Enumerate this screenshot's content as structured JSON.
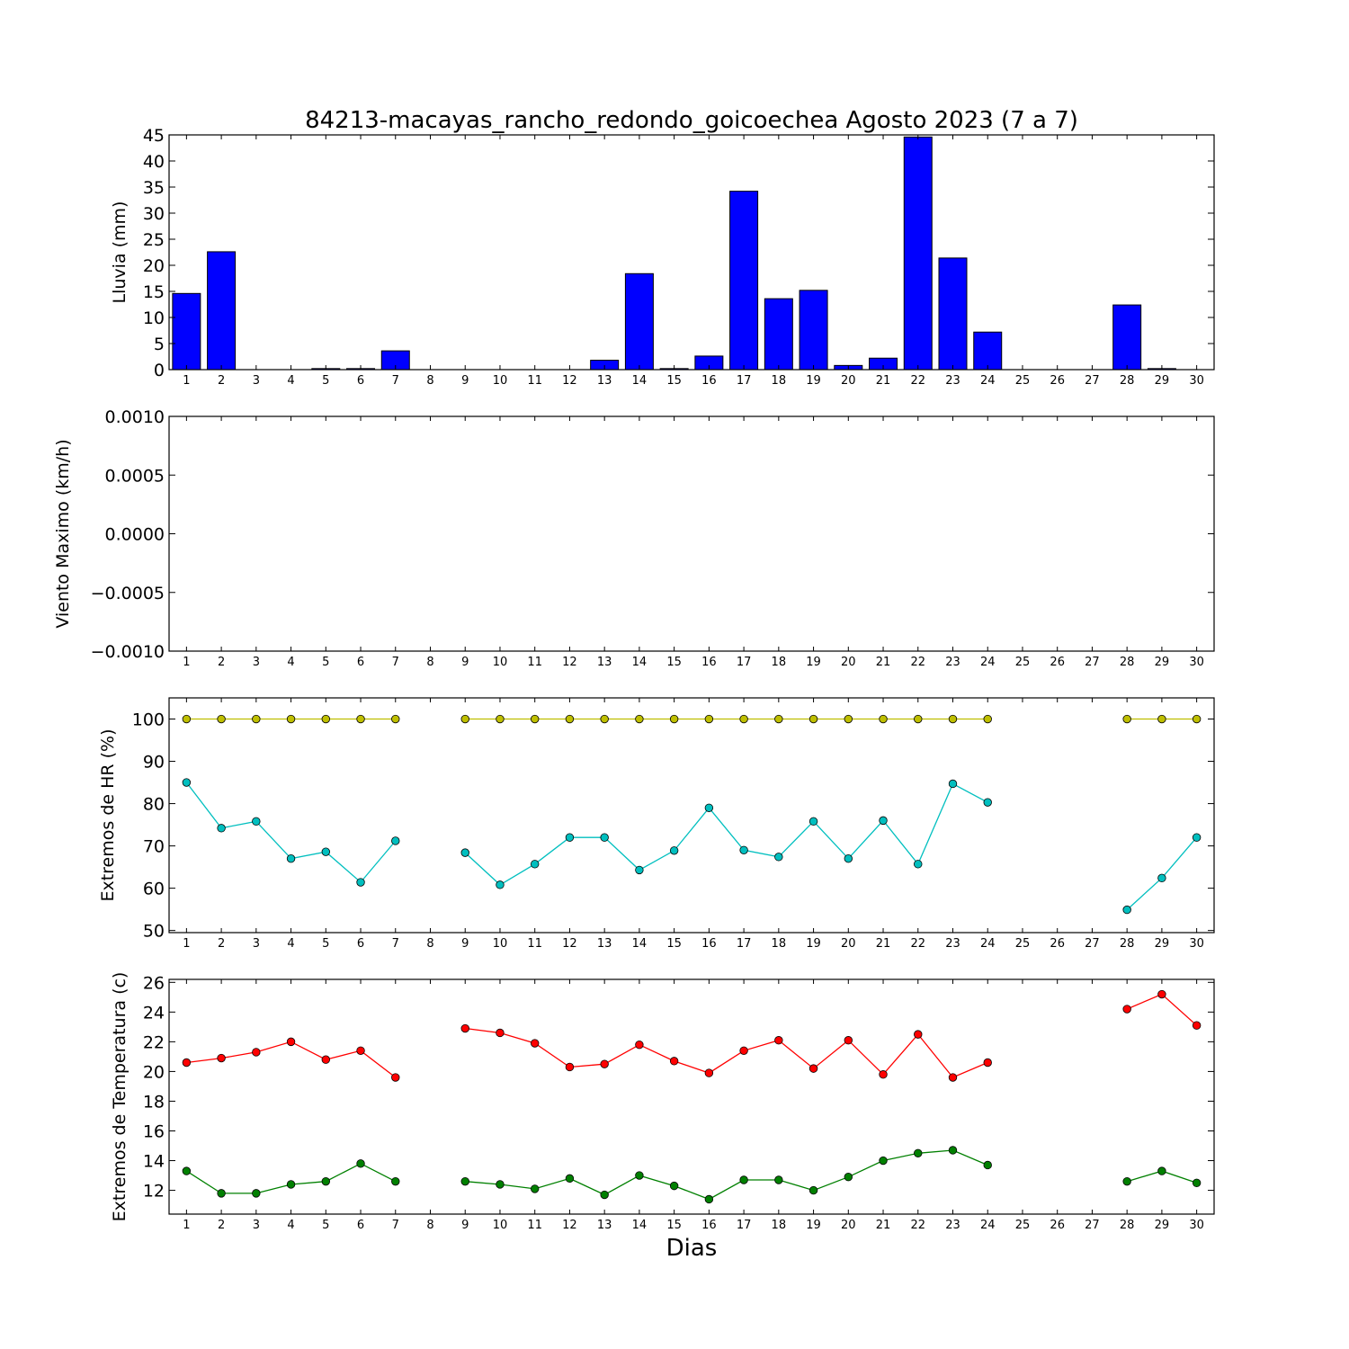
{
  "figure": {
    "title": "84213-macayas_rancho_redondo_goicoechea Agosto 2023  (7 a 7)",
    "xlabel": "Dias"
  },
  "chart_data": [
    {
      "type": "bar",
      "ylabel": "Lluvia (mm)",
      "ylim": [
        0,
        45
      ],
      "yticks": [
        "0",
        "5",
        "10",
        "15",
        "20",
        "25",
        "30",
        "35",
        "40",
        "45"
      ],
      "xticks": [
        "1",
        "2",
        "3",
        "4",
        "5",
        "6",
        "7",
        "8",
        "9",
        "10",
        "11",
        "12",
        "13",
        "14",
        "15",
        "16",
        "17",
        "18",
        "19",
        "20",
        "21",
        "22",
        "23",
        "24",
        "25",
        "26",
        "27",
        "28",
        "29",
        "30"
      ],
      "grid": false,
      "series": [
        {
          "color": "#0000ff",
          "x": [
            1,
            2,
            3,
            4,
            5,
            6,
            7,
            8,
            9,
            10,
            11,
            12,
            13,
            14,
            15,
            16,
            17,
            18,
            19,
            20,
            21,
            22,
            23,
            24,
            25,
            26,
            27,
            28,
            29,
            30
          ],
          "values": [
            14.6,
            22.6,
            0,
            0,
            0.2,
            0.2,
            3.6,
            0,
            0,
            0,
            0,
            0,
            1.8,
            18.4,
            0.2,
            2.6,
            34.2,
            13.6,
            15.2,
            0.8,
            2.2,
            44.6,
            21.4,
            7.2,
            0,
            0,
            0,
            12.4,
            0.2,
            0
          ]
        }
      ]
    },
    {
      "type": "line",
      "ylabel": "Viento Maximo (km/h)",
      "ylim": [
        -0.001,
        0.001
      ],
      "yticks": [
        "−0.0010",
        "−0.0005",
        "0.0000",
        "0.0005",
        "0.0010"
      ],
      "xticks": [
        "1",
        "2",
        "3",
        "4",
        "5",
        "6",
        "7",
        "8",
        "9",
        "10",
        "11",
        "12",
        "13",
        "14",
        "15",
        "16",
        "17",
        "18",
        "19",
        "20",
        "21",
        "22",
        "23",
        "24",
        "25",
        "26",
        "27",
        "28",
        "29",
        "30"
      ],
      "grid": false,
      "series": []
    },
    {
      "type": "line",
      "ylabel": "Extremos de HR (%)",
      "ylim": [
        49.5,
        105
      ],
      "yticks": [
        "50",
        "60",
        "70",
        "80",
        "90",
        "100"
      ],
      "xticks": [
        "1",
        "2",
        "3",
        "4",
        "5",
        "6",
        "7",
        "8",
        "9",
        "10",
        "11",
        "12",
        "13",
        "14",
        "15",
        "16",
        "17",
        "18",
        "19",
        "20",
        "21",
        "22",
        "23",
        "24",
        "25",
        "26",
        "27",
        "28",
        "29",
        "30"
      ],
      "grid": false,
      "series": [
        {
          "color": "#bfbf00",
          "x": [
            1,
            2,
            3,
            4,
            5,
            6,
            7,
            8,
            9,
            10,
            11,
            12,
            13,
            14,
            15,
            16,
            17,
            18,
            19,
            20,
            21,
            22,
            23,
            24,
            25,
            26,
            27,
            28,
            29,
            30
          ],
          "values": [
            100,
            100,
            100,
            100,
            100,
            100,
            100,
            null,
            100,
            100,
            100,
            100,
            100,
            100,
            100,
            100,
            100,
            100,
            100,
            100,
            100,
            100,
            100,
            100,
            null,
            null,
            null,
            100,
            100,
            100
          ]
        },
        {
          "color": "#00bfbf",
          "x": [
            1,
            2,
            3,
            4,
            5,
            6,
            7,
            8,
            9,
            10,
            11,
            12,
            13,
            14,
            15,
            16,
            17,
            18,
            19,
            20,
            21,
            22,
            23,
            24,
            25,
            26,
            27,
            28,
            29,
            30
          ],
          "values": [
            85,
            74.2,
            75.8,
            67,
            68.6,
            61.4,
            71.2,
            null,
            68.4,
            60.8,
            65.7,
            72,
            72,
            64.3,
            68.9,
            79,
            69,
            67.4,
            75.8,
            67,
            76,
            65.7,
            84.7,
            80.3,
            null,
            null,
            null,
            54.9,
            62.4,
            72
          ]
        }
      ]
    },
    {
      "type": "line",
      "ylabel": "Extremos de Temperatura (c)",
      "ylim": [
        10.4,
        26.2
      ],
      "yticks": [
        "12",
        "14",
        "16",
        "18",
        "20",
        "22",
        "24",
        "26"
      ],
      "xticks": [
        "1",
        "2",
        "3",
        "4",
        "5",
        "6",
        "7",
        "8",
        "9",
        "10",
        "11",
        "12",
        "13",
        "14",
        "15",
        "16",
        "17",
        "18",
        "19",
        "20",
        "21",
        "22",
        "23",
        "24",
        "25",
        "26",
        "27",
        "28",
        "29",
        "30"
      ],
      "grid": false,
      "series": [
        {
          "color": "#ff0000",
          "x": [
            1,
            2,
            3,
            4,
            5,
            6,
            7,
            8,
            9,
            10,
            11,
            12,
            13,
            14,
            15,
            16,
            17,
            18,
            19,
            20,
            21,
            22,
            23,
            24,
            25,
            26,
            27,
            28,
            29,
            30
          ],
          "values": [
            20.6,
            20.9,
            21.3,
            22,
            20.8,
            21.4,
            19.6,
            null,
            22.9,
            22.6,
            21.9,
            20.3,
            20.5,
            21.8,
            20.7,
            19.9,
            21.4,
            22.1,
            20.2,
            22.1,
            19.8,
            22.5,
            19.6,
            20.6,
            null,
            null,
            null,
            24.2,
            25.2,
            23.1
          ]
        },
        {
          "color": "#008000",
          "x": [
            1,
            2,
            3,
            4,
            5,
            6,
            7,
            8,
            9,
            10,
            11,
            12,
            13,
            14,
            15,
            16,
            17,
            18,
            19,
            20,
            21,
            22,
            23,
            24,
            25,
            26,
            27,
            28,
            29,
            30
          ],
          "values": [
            13.3,
            11.8,
            11.8,
            12.4,
            12.6,
            13.8,
            12.6,
            null,
            12.6,
            12.4,
            12.1,
            12.8,
            11.7,
            13,
            12.3,
            11.4,
            12.7,
            12.7,
            12,
            12.9,
            14,
            14.5,
            14.7,
            13.7,
            null,
            null,
            null,
            12.6,
            13.3,
            12.5
          ]
        }
      ]
    }
  ]
}
